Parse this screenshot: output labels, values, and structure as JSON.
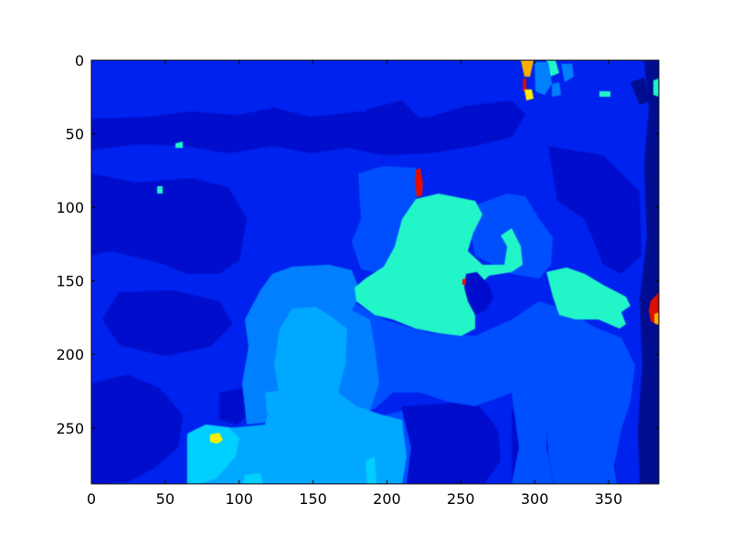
{
  "chart_data": {
    "type": "heatmap",
    "colormap": "jet",
    "title": "",
    "xlabel": "",
    "ylabel": "",
    "xlim": [
      0,
      384
    ],
    "ylim": [
      288,
      0
    ],
    "xticks": [
      0,
      50,
      100,
      150,
      200,
      250,
      300,
      350
    ],
    "yticks": [
      0,
      50,
      100,
      150,
      200,
      250
    ],
    "xtick_labels": [
      "0",
      "50",
      "100",
      "150",
      "200",
      "250",
      "300",
      "350"
    ],
    "ytick_labels": [
      "0",
      "50",
      "100",
      "150",
      "200",
      "250"
    ],
    "grid": false,
    "colors": {
      "background_blue": "#0022ee",
      "darker_blue": "#0010cc",
      "dark_navy": "#000a90",
      "medium_blue": "#0050ff",
      "light_blue": "#0080ff",
      "sky_blue": "#00a8ff",
      "cyan": "#00d0ff",
      "aquamarine": "#20f5c8",
      "red": "#dd1100",
      "orange": "#ffb000",
      "yellow": "#ffee00"
    }
  }
}
